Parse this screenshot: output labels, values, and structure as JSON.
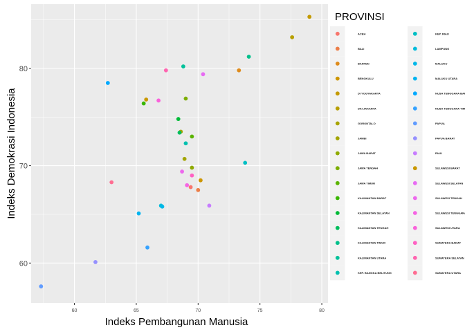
{
  "chart_data": {
    "type": "scatter",
    "xlabel": "Indeks Pembangunan Manusia",
    "ylabel": "Indeks Demokrasi Indonesia",
    "xlim": [
      56.5,
      80.5
    ],
    "ylim": [
      55.9,
      86.6
    ],
    "x_ticks": [
      60,
      65,
      70,
      75,
      80
    ],
    "y_ticks": [
      60,
      70,
      80
    ],
    "grid": true,
    "legend_title": "PROVINSI",
    "legend_position": "right",
    "series": [
      {
        "name": "ACEH",
        "color": "#F8766D",
        "x": 69.4,
        "y": 67.8
      },
      {
        "name": "BALI",
        "color": "#EC7E48",
        "x": 70.0,
        "y": 67.5
      },
      {
        "name": "BANTEN",
        "color": "#DE8B1C",
        "x": 73.3,
        "y": 79.8
      },
      {
        "name": "BENGKULU",
        "color": "#CD9600",
        "x": 70.2,
        "y": 68.5
      },
      {
        "name": "DI YOGYAKARTA",
        "color": "#C49A00",
        "x": 79.0,
        "y": 85.3
      },
      {
        "name": "DKI JAKARTA",
        "color": "#B79F00",
        "x": 77.6,
        "y": 83.2
      },
      {
        "name": "GORONTALO",
        "color": "#A8A400",
        "x": 68.6,
        "y": 73.5
      },
      {
        "name": "JAMBI",
        "color": "#A3A500",
        "x": 68.9,
        "y": 70.7
      },
      {
        "name": "JAWA BARAT",
        "color": "#8FAA00",
        "x": 69.5,
        "y": 69.8
      },
      {
        "name": "JAWA TENGAH",
        "color": "#7CAE00",
        "x": 69.0,
        "y": 76.9
      },
      {
        "name": "JAWA TIMUR",
        "color": "#5BB300",
        "x": 69.5,
        "y": 73.0
      },
      {
        "name": "KALIMANTAN BARAT",
        "color": "#39B600",
        "x": 65.6,
        "y": 76.4
      },
      {
        "name": "KALIMANTAN SELATAN",
        "color": "#00BA38",
        "x": 68.4,
        "y": 74.8
      },
      {
        "name": "KALIMANTAN TENGAH",
        "color": "#00BD5C",
        "x": 68.5,
        "y": 73.4
      },
      {
        "name": "KALIMANTAN TIMUR",
        "color": "#00C08B",
        "x": 74.1,
        "y": 81.2
      },
      {
        "name": "KALIMANTAN UTARA",
        "color": "#00C19A",
        "x": 68.8,
        "y": 80.2
      },
      {
        "name": "KEP. BANGKA BELITUNG",
        "color": "#00C0AF",
        "x": 69.0,
        "y": 72.3
      },
      {
        "name": "KEP. RIAU",
        "color": "#00BFC4",
        "x": 73.8,
        "y": 70.3
      },
      {
        "name": "LAMPUNG",
        "color": "#00BBDB",
        "x": 67.0,
        "y": 65.9
      },
      {
        "name": "MALUKU",
        "color": "#00B7E8",
        "x": 67.1,
        "y": 65.8
      },
      {
        "name": "MALUKU UTARA",
        "color": "#00B4F0",
        "x": 65.2,
        "y": 65.1
      },
      {
        "name": "NUSA TENGGARA BARAT",
        "color": "#00A9FF",
        "x": 62.7,
        "y": 78.5
      },
      {
        "name": "NUSA TENGGARA TIMUR",
        "color": "#35A2FF",
        "x": 65.9,
        "y": 61.6
      },
      {
        "name": "PAPUA",
        "color": "#619CFF",
        "x": 57.3,
        "y": 57.6
      },
      {
        "name": "PAPUA BARAT",
        "color": "#9590FF",
        "x": 61.7,
        "y": 60.1
      },
      {
        "name": "RIAU",
        "color": "#C77CFF",
        "x": 70.9,
        "y": 65.9
      },
      {
        "name": "SULAWESI BARAT",
        "color": "#C99800",
        "x": 65.8,
        "y": 76.8
      },
      {
        "name": "SULAWESI SELATAN",
        "color": "#E76BF3",
        "x": 70.4,
        "y": 79.4
      },
      {
        "name": "SULAWESI TENGAH",
        "color": "#ED68ED",
        "x": 68.7,
        "y": 69.4
      },
      {
        "name": "SULAWESI TENGGARA",
        "color": "#F564E3",
        "x": 69.1,
        "y": 68.0
      },
      {
        "name": "SULAWESI UTARA",
        "color": "#FA62DB",
        "x": 66.8,
        "y": 76.7
      },
      {
        "name": "SUMATERA BARAT",
        "color": "#FF61C3",
        "x": 69.5,
        "y": 69.0
      },
      {
        "name": "SUMATERA SELATAN",
        "color": "#FF64B0",
        "x": 67.4,
        "y": 79.8
      },
      {
        "name": "SUMATERA UTARA",
        "color": "#FF6C91",
        "x": 63.0,
        "y": 68.3
      }
    ]
  }
}
